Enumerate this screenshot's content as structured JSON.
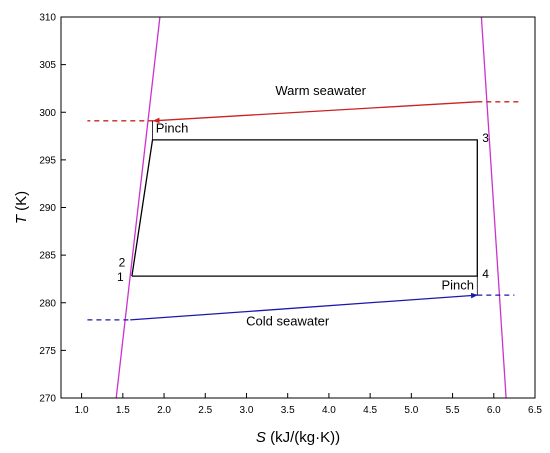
{
  "chart_data": {
    "type": "line",
    "title": "",
    "xlabel": {
      "symbol": "S",
      "unit": " (kJ/(kg·K))"
    },
    "ylabel": {
      "symbol": "T",
      "unit": " (K)"
    },
    "xlim": [
      0.75,
      6.5
    ],
    "ylim": [
      270,
      310
    ],
    "xticks": [
      "1.0",
      "1.5",
      "2.0",
      "2.5",
      "3.0",
      "3.5",
      "4.0",
      "4.5",
      "5.0",
      "5.5",
      "6.0",
      "6.5"
    ],
    "yticks": [
      "270",
      "275",
      "280",
      "285",
      "290",
      "295",
      "300",
      "305",
      "310"
    ],
    "grid": false,
    "legend": "none",
    "colors": {
      "saturation_dome": "#cc33cc",
      "cycle": "#000000",
      "warm_seawater": "#cc2222",
      "cold_seawater": "#1a1aaa"
    },
    "series": [
      {
        "key": "sat_liquid",
        "style": "solid",
        "color_key": "saturation_dome",
        "x": [
          1.42,
          1.95
        ],
        "y": [
          270,
          310
        ]
      },
      {
        "key": "sat_vapor",
        "style": "solid",
        "color_key": "saturation_dome",
        "x": [
          5.85,
          6.15
        ],
        "y": [
          310,
          270
        ]
      },
      {
        "key": "cycle",
        "style": "solid",
        "color_key": "cycle",
        "x": [
          1.61,
          1.86,
          5.8,
          5.8,
          1.61
        ],
        "y": [
          282.8,
          297.1,
          297.1,
          282.8,
          282.8
        ]
      },
      {
        "key": "warm_solid",
        "style": "arrow",
        "color_key": "warm_seawater",
        "x": [
          5.8,
          1.87
        ],
        "y": [
          301.1,
          299.1
        ]
      },
      {
        "key": "warm_ext_left",
        "style": "dashed",
        "color_key": "warm_seawater",
        "x": [
          1.87,
          1.07
        ],
        "y": [
          299.1,
          299.1
        ]
      },
      {
        "key": "warm_ext_right",
        "style": "dashed",
        "color_key": "warm_seawater",
        "x": [
          5.8,
          6.3
        ],
        "y": [
          301.1,
          301.1
        ]
      },
      {
        "key": "cold_solid",
        "style": "arrow",
        "color_key": "cold_seawater",
        "x": [
          1.59,
          5.8
        ],
        "y": [
          278.2,
          280.8
        ]
      },
      {
        "key": "cold_ext_left",
        "style": "dashed",
        "color_key": "cold_seawater",
        "x": [
          1.07,
          1.59
        ],
        "y": [
          278.2,
          278.2
        ]
      },
      {
        "key": "cold_ext_right",
        "style": "dashed",
        "color_key": "cold_seawater",
        "x": [
          5.8,
          6.25
        ],
        "y": [
          280.8,
          280.8
        ]
      }
    ],
    "pinch_markers": [
      {
        "x": 1.86,
        "y1": 299.1,
        "y2": 297.1
      },
      {
        "x": 5.8,
        "y1": 282.8,
        "y2": 280.8
      }
    ],
    "annotations": [
      {
        "text": "Warm seawater",
        "x": 3.9,
        "y": 301.8,
        "anchor": "middle"
      },
      {
        "text": "Cold seawater",
        "x": 3.5,
        "y": 277.6,
        "anchor": "middle"
      },
      {
        "text": "Pinch",
        "x": 1.9,
        "y": 297.9,
        "anchor": "start"
      },
      {
        "text": "Pinch",
        "x": 5.76,
        "y": 281.4,
        "anchor": "end"
      },
      {
        "text": "1",
        "x": 1.51,
        "y": 282.3,
        "anchor": "end"
      },
      {
        "text": "2",
        "x": 1.53,
        "y": 283.8,
        "anchor": "end"
      },
      {
        "text": "3",
        "x": 5.86,
        "y": 296.9,
        "anchor": "start"
      },
      {
        "text": "4",
        "x": 5.86,
        "y": 282.6,
        "anchor": "start"
      }
    ]
  }
}
